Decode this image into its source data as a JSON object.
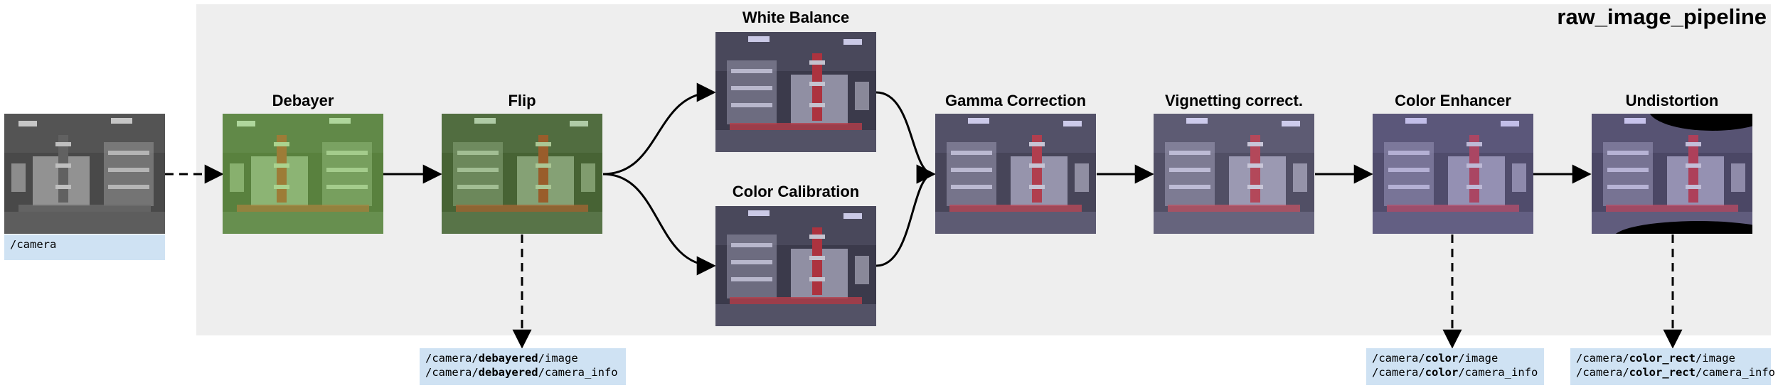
{
  "pipeline": {
    "title": "raw_image_pipeline"
  },
  "input": {
    "topic": "/camera"
  },
  "stages": {
    "debayer": "Debayer",
    "flip": "Flip",
    "white_balance": "White Balance",
    "color_calibration": "Color Calibration",
    "gamma": "Gamma Correction",
    "vignetting": "Vignetting correct.",
    "color_enhancer": "Color Enhancer",
    "undistortion": "Undistortion"
  },
  "outputs": {
    "debayered": {
      "prefix": "/camera/",
      "name": "debayered",
      "line1_suffix": "/image",
      "line2_suffix": "/camera_info"
    },
    "color": {
      "prefix": "/camera/",
      "name": "color",
      "line1_suffix": "/image",
      "line2_suffix": "/camera_info"
    },
    "color_rect": {
      "prefix": "/camera/",
      "name": "color_rect",
      "line1_suffix": "/image",
      "line2_suffix": "/camera_info"
    }
  },
  "colors": {
    "panel": "#eeeeee",
    "topic_bg": "#cfe2f3",
    "raw_tint": "#9a9a9a",
    "debayer_tint": "#7fc84a",
    "flip_tint": "#6aa83a",
    "balanced_tint": "#6e6a9a",
    "enhanced_tint": "#8a7fc8"
  }
}
